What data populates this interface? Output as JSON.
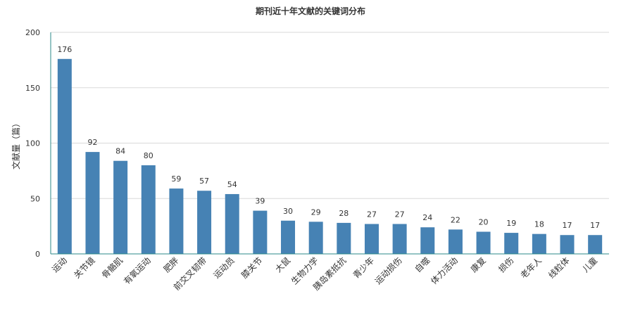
{
  "chart_data": {
    "type": "bar",
    "title": "期刊近十年文献的关键词分布",
    "ylabel": "文献量（篇）",
    "xlabel": "",
    "ylim": [
      0,
      200
    ],
    "yticks": [
      0,
      50,
      100,
      150,
      200
    ],
    "grid": true,
    "legend": "none",
    "bar_color": "#4682b4",
    "categories": [
      "运动",
      "关节镜",
      "骨骼肌",
      "有氧运动",
      "肥胖",
      "前交叉韧带",
      "运动员",
      "膝关节",
      "大鼠",
      "生物力学",
      "胰岛素抵抗",
      "青少年",
      "运动损伤",
      "自噬",
      "体力活动",
      "康复",
      "损伤",
      "老年人",
      "线粒体",
      "儿童"
    ],
    "values": [
      176,
      92,
      84,
      80,
      59,
      57,
      54,
      39,
      30,
      29,
      28,
      27,
      27,
      24,
      22,
      20,
      19,
      18,
      17,
      17
    ]
  }
}
